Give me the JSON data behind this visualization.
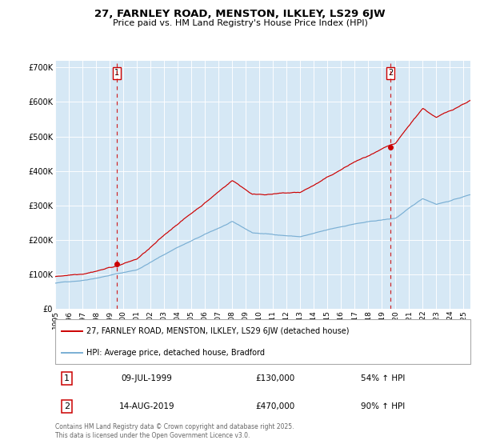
{
  "title": "27, FARNLEY ROAD, MENSTON, ILKLEY, LS29 6JW",
  "subtitle": "Price paid vs. HM Land Registry's House Price Index (HPI)",
  "bg_color": "#d6e8f5",
  "red_color": "#cc0000",
  "blue_color": "#7aafd4",
  "legend_label_red": "27, FARNLEY ROAD, MENSTON, ILKLEY, LS29 6JW (detached house)",
  "legend_label_blue": "HPI: Average price, detached house, Bradford",
  "sale1_label": "1",
  "sale1_date": "09-JUL-1999",
  "sale1_price": 130000,
  "sale1_pct": "54% ↑ HPI",
  "sale2_label": "2",
  "sale2_date": "14-AUG-2019",
  "sale2_price": 470000,
  "sale2_pct": "90% ↑ HPI",
  "vline1_x": 1999.53,
  "vline2_x": 2019.62,
  "dot1_y": 130000,
  "dot2_y": 470000,
  "xlim": [
    1995.0,
    2025.5
  ],
  "ylim": [
    0,
    720000
  ],
  "yticks": [
    0,
    100000,
    200000,
    300000,
    400000,
    500000,
    600000,
    700000
  ],
  "xticks": [
    1995,
    1996,
    1997,
    1998,
    1999,
    2000,
    2001,
    2002,
    2003,
    2004,
    2005,
    2006,
    2007,
    2008,
    2009,
    2010,
    2011,
    2012,
    2013,
    2014,
    2015,
    2016,
    2017,
    2018,
    2019,
    2020,
    2021,
    2022,
    2023,
    2024,
    2025
  ],
  "footnote": "Contains HM Land Registry data © Crown copyright and database right 2025.\nThis data is licensed under the Open Government Licence v3.0."
}
